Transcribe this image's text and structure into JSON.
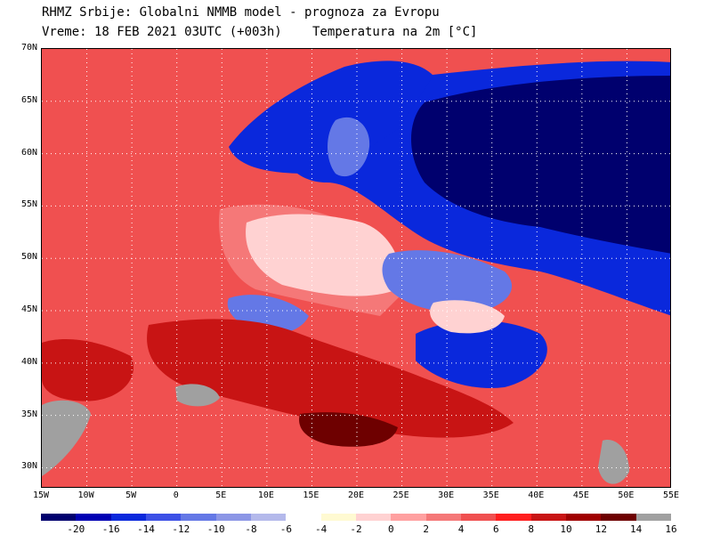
{
  "header": {
    "line1": "RHMZ Srbije: Globalni NMMB model - prognoza za Evropu",
    "line2": "Vreme: 18 FEB 2021 03UTC (+003h)",
    "variable": "Temperatura na 2m [°C]"
  },
  "axes": {
    "lat_labels": [
      "70N",
      "65N",
      "60N",
      "55N",
      "50N",
      "45N",
      "40N",
      "35N",
      "30N"
    ],
    "lon_labels": [
      "15W",
      "10W",
      "5W",
      "0",
      "5E",
      "10E",
      "15E",
      "20E",
      "25E",
      "30E",
      "35E",
      "40E",
      "45E",
      "50E",
      "55E"
    ],
    "grid": true
  },
  "legend": {
    "colors": [
      "#00006e",
      "#0000b4",
      "#0a28dc",
      "#3c50e6",
      "#6478e6",
      "#8c96e6",
      "#b4b9eb",
      "#ffffff",
      "#fffad2",
      "#ffd2d2",
      "#ffa0a0",
      "#f57878",
      "#f05050",
      "#ff1e1e",
      "#c81414",
      "#a00000",
      "#6e0000",
      "#a0a0a0"
    ],
    "tick_labels": [
      "-20",
      "-16",
      "-14",
      "-12",
      "-10",
      "-8",
      "-6",
      "-4",
      "-2",
      "0",
      "2",
      "4",
      "6",
      "8",
      "10",
      "12",
      "14",
      "16"
    ]
  },
  "map": {
    "ocean_color": "#f05050",
    "land_warm_color": "#f57878",
    "cold_deep_color": "#00006e",
    "cold_color": "#0a28dc",
    "cool_color": "#6478e6",
    "pale_color": "#ffd2d2",
    "hot_color": "#c81414",
    "hottest_color": "#6e0000",
    "nodata_color": "#a0a0a0"
  }
}
